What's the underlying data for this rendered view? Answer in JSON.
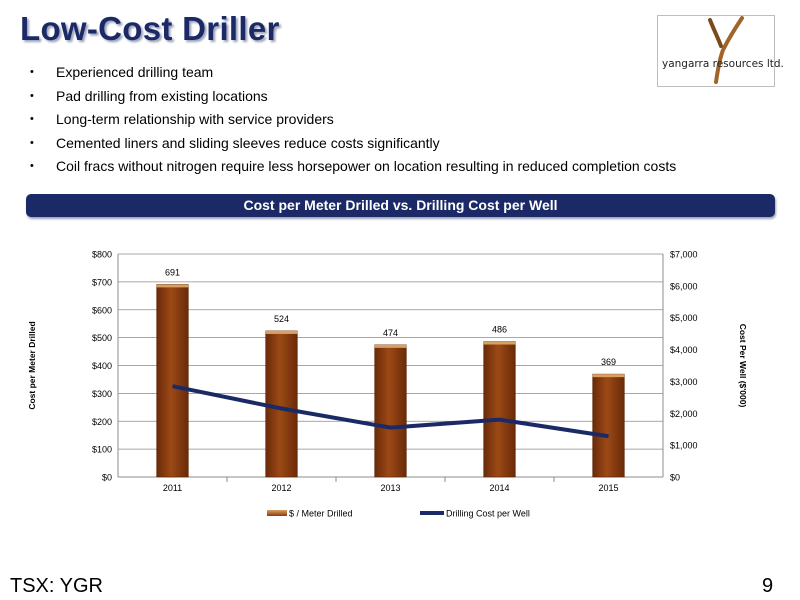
{
  "title": "Low-Cost Driller",
  "logo": {
    "text": "yangarra resources ltd."
  },
  "bullets": [
    "Experienced drilling team",
    "Pad drilling from existing locations",
    "Long-term relationship with service providers",
    "Cemented liners and sliding sleeves reduce costs significantly",
    "Coil fracs without nitrogen require less horsepower on location resulting in reduced completion costs"
  ],
  "bullet_glyph": "•",
  "banner": "Cost per Meter Drilled vs. Drilling Cost per Well",
  "chart_data": {
    "type": "bar",
    "categories": [
      "2011",
      "2012",
      "2013",
      "2014",
      "2015"
    ],
    "series": [
      {
        "name": "$ / Meter Drilled",
        "type": "bar",
        "axis": "left",
        "values": [
          691,
          524,
          474,
          486,
          369
        ],
        "color": "#8b3a0f"
      },
      {
        "name": "Drilling Cost per Well",
        "type": "line",
        "axis": "right",
        "values": [
          2850,
          2150,
          1550,
          1800,
          1280
        ],
        "color": "#1b2a66"
      }
    ],
    "ylabel": "Cost per Meter Drilled",
    "y2label": "Cost Per Well ($'000)",
    "ylim": [
      0,
      800
    ],
    "y2lim": [
      0,
      7000
    ],
    "yticks": [
      "$0",
      "$100",
      "$200",
      "$300",
      "$400",
      "$500",
      "$600",
      "$700",
      "$800"
    ],
    "y2ticks": [
      "$0",
      "$1,000",
      "$2,000",
      "$3,000",
      "$4,000",
      "$5,000",
      "$6,000",
      "$7,000"
    ],
    "data_labels": [
      "691",
      "524",
      "474",
      "486",
      "369"
    ],
    "grid": true,
    "legend": "bottom"
  },
  "footer": {
    "ticker": "TSX: YGR",
    "page": "9"
  }
}
